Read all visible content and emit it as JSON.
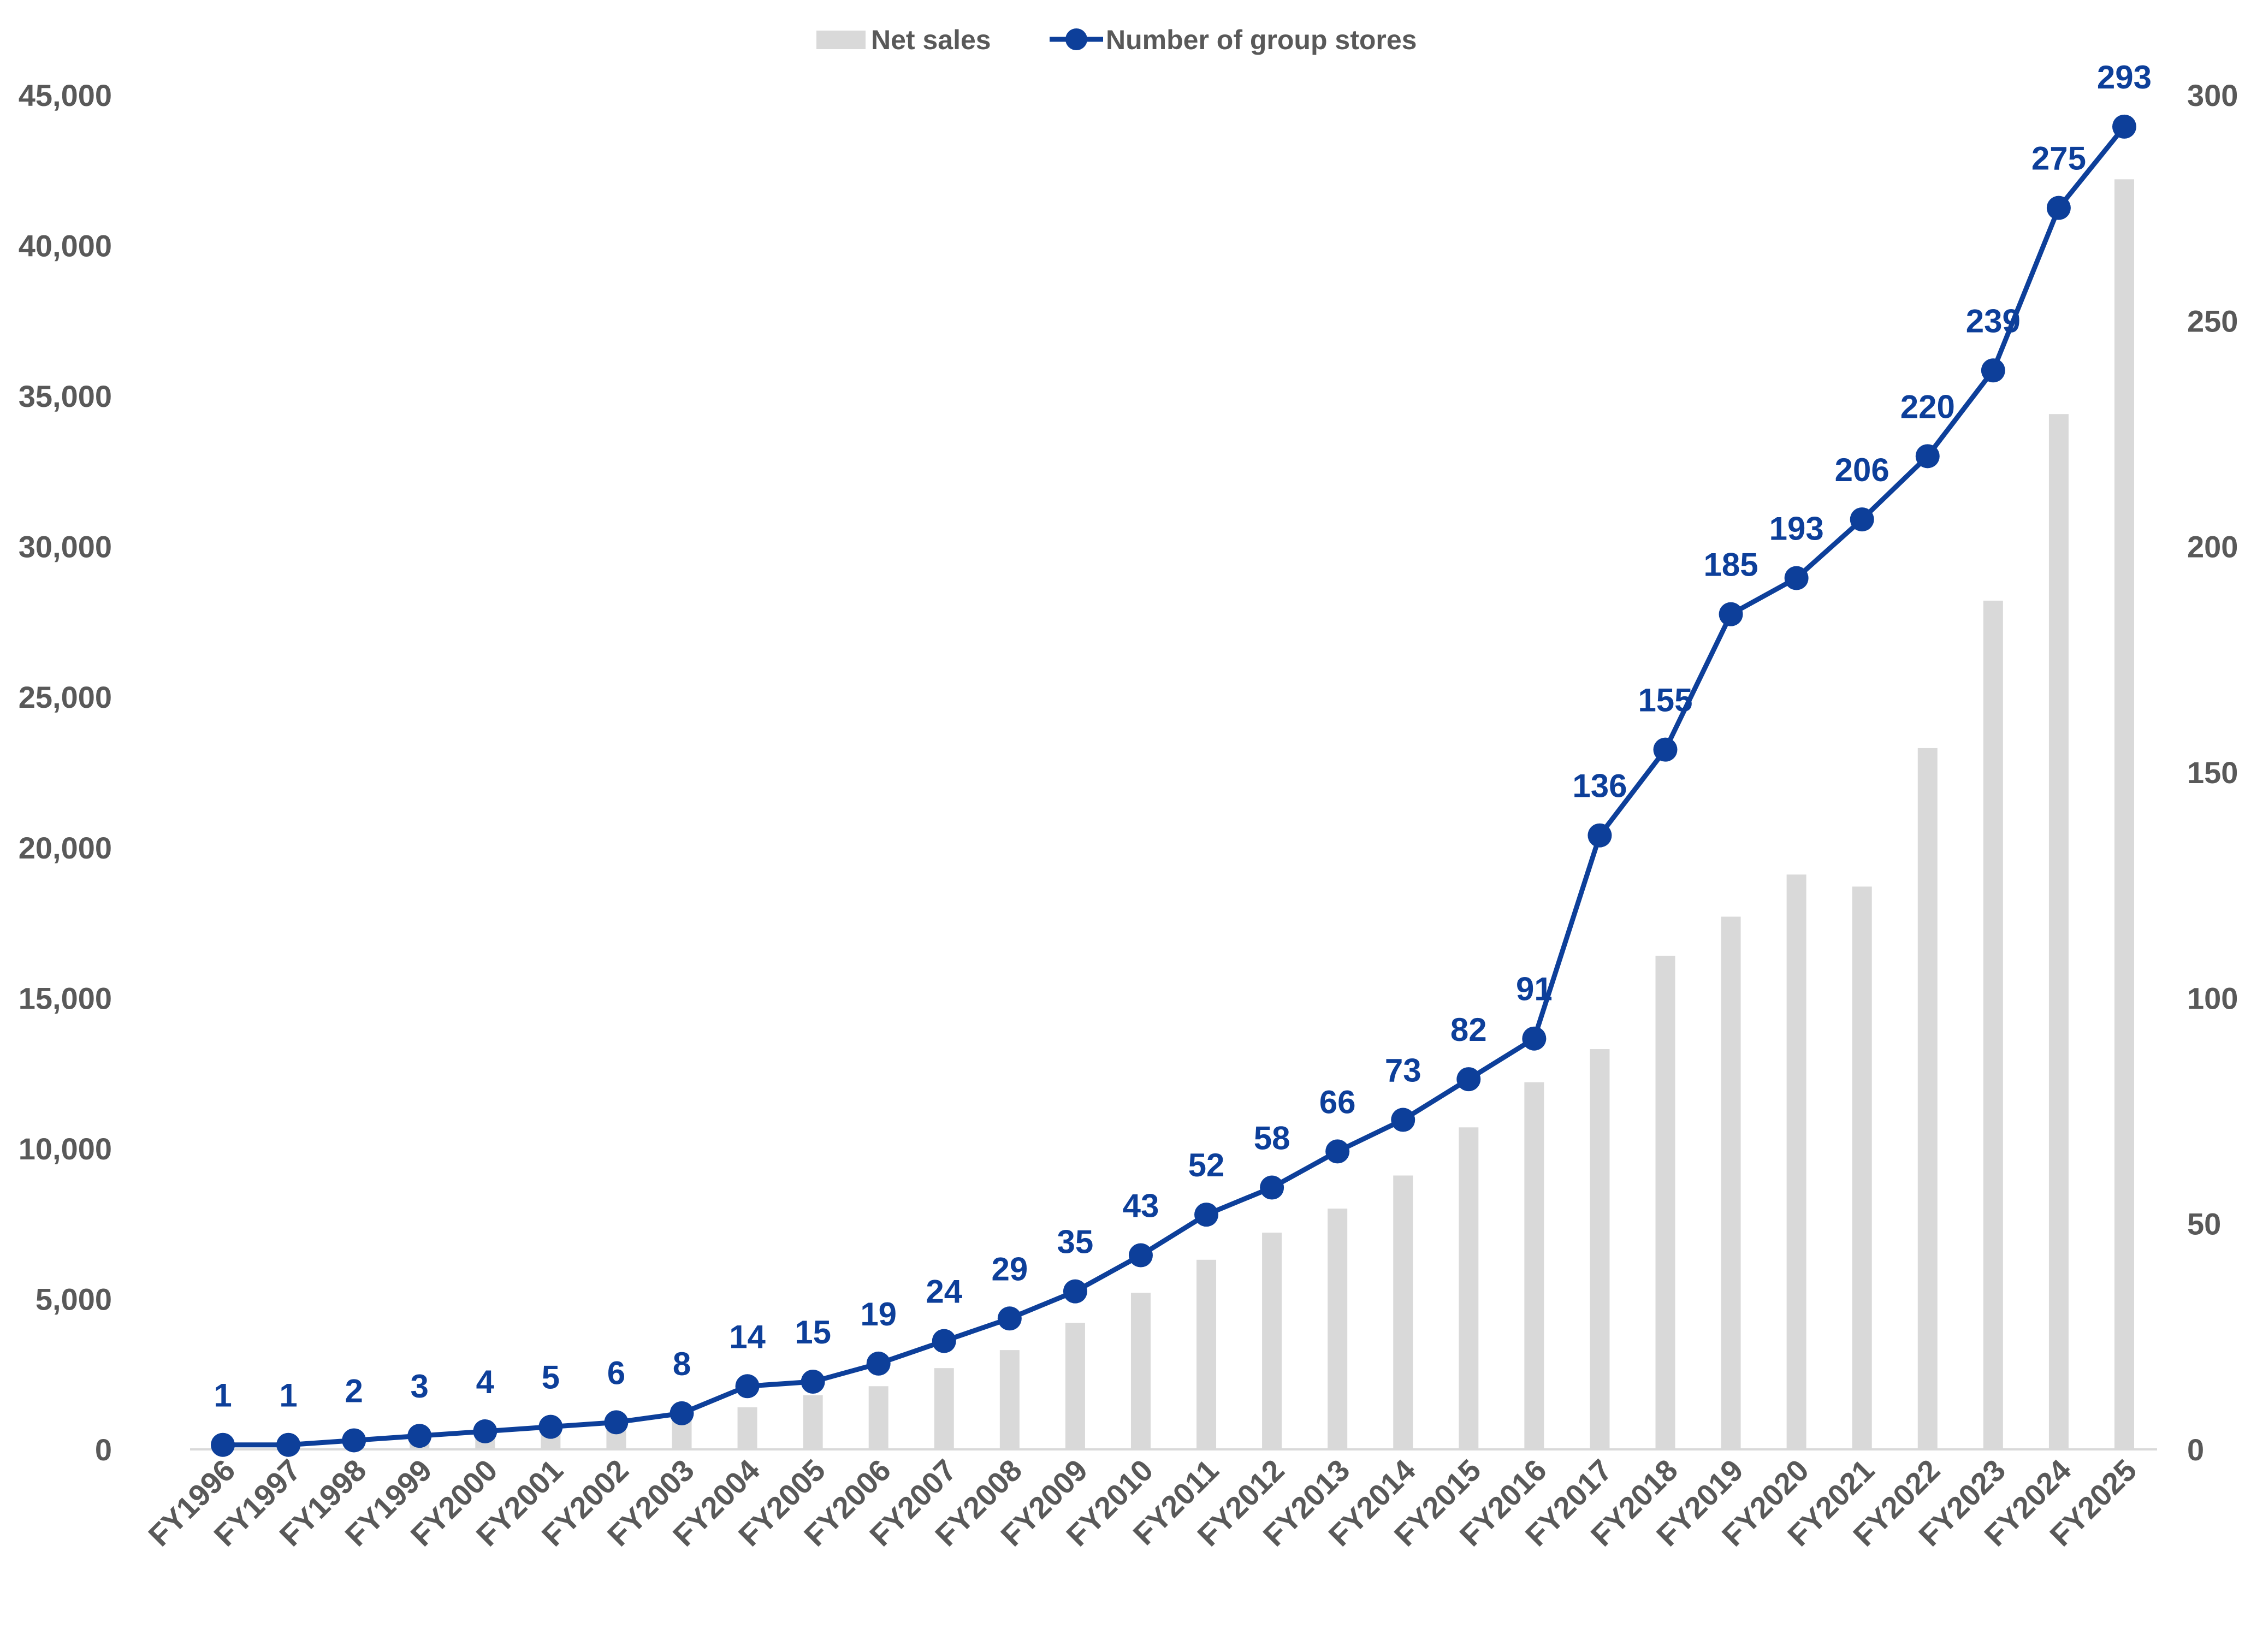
{
  "chart_data": {
    "type": "bar",
    "title": "",
    "xlabel": "",
    "ylabel": "",
    "ylabel_right": "",
    "categories": [
      "FY1996",
      "FY1997",
      "FY1998",
      "FY1999",
      "FY2000",
      "FY2001",
      "FY2002",
      "FY2003",
      "FY2004",
      "FY2005",
      "FY2006",
      "FY2007",
      "FY2008",
      "FY2009",
      "FY2010",
      "FY2011",
      "FY2012",
      "FY2013",
      "FY2014",
      "FY2015",
      "FY2016",
      "FY2017",
      "FY2018",
      "FY2019",
      "FY2020",
      "FY2021",
      "FY2022",
      "FY2023",
      "FY2024",
      "FY2025"
    ],
    "series": [
      {
        "name": "Net sales",
        "type": "bar",
        "axis": "left",
        "color": "#d9d9d9",
        "values": [
          100,
          100,
          200,
          300,
          500,
          600,
          700,
          1000,
          1400,
          1800,
          2100,
          2700,
          3300,
          4200,
          5200,
          6300,
          7200,
          8000,
          9100,
          10700,
          12200,
          13300,
          16400,
          17700,
          19100,
          18700,
          23300,
          28200,
          34400,
          42200
        ]
      },
      {
        "name": "Number of group stores",
        "type": "line",
        "axis": "right",
        "color": "#0d3f9a",
        "values": [
          1,
          1,
          2,
          3,
          4,
          5,
          6,
          8,
          14,
          15,
          19,
          24,
          29,
          35,
          43,
          52,
          58,
          66,
          73,
          82,
          91,
          136,
          155,
          185,
          193,
          206,
          220,
          239,
          275,
          293
        ],
        "labels": [
          "1",
          "1",
          "2",
          "3",
          "4",
          "5",
          "6",
          "8",
          "14",
          "15",
          "19",
          "24",
          "29",
          "35",
          "43",
          "52",
          "58",
          "66",
          "73",
          "82",
          "91",
          "136",
          "155",
          "185",
          "193",
          "206",
          "220",
          "239",
          "275",
          "293"
        ]
      }
    ],
    "y_left": {
      "min": 0,
      "max": 45000,
      "ticks": [
        "0",
        "5,000",
        "10,000",
        "15,000",
        "20,000",
        "25,000",
        "30,000",
        "35,000",
        "40,000",
        "45,000"
      ]
    },
    "y_right": {
      "min": 0,
      "max": 300,
      "ticks": [
        "0",
        "50",
        "100",
        "150",
        "200",
        "250",
        "300"
      ]
    },
    "grid": false,
    "legend": {
      "position": "top-center"
    }
  }
}
